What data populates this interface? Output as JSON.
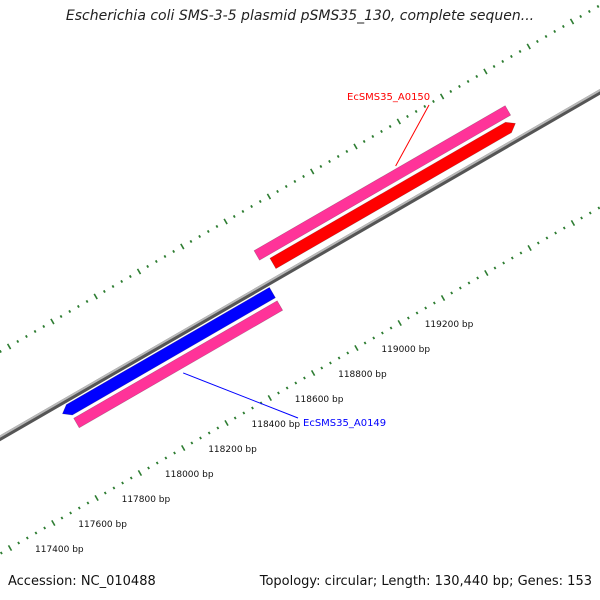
{
  "title": "Escherichia coli SMS-3-5 plasmid pSMS35_130, complete sequen...",
  "footer": {
    "accession": "Accession: NC_010488",
    "summary": "Topology: circular; Length: 130,440 bp; Genes: 153"
  },
  "colors": {
    "backbone": "#808080",
    "tick": "#2e7d32",
    "forward_cds": "#ff0000",
    "reverse_cds": "#0000ff",
    "gene": "#ff3399"
  },
  "chart_data": {
    "type": "linear-genome-map",
    "tick_labels": [
      {
        "bp": 117400,
        "label": "117400 bp"
      },
      {
        "bp": 117600,
        "label": "117600 bp"
      },
      {
        "bp": 117800,
        "label": "117800 bp"
      },
      {
        "bp": 118000,
        "label": "118000 bp"
      },
      {
        "bp": 118200,
        "label": "118200 bp"
      },
      {
        "bp": 118400,
        "label": "118400 bp"
      },
      {
        "bp": 118600,
        "label": "118600 bp"
      },
      {
        "bp": 118800,
        "label": "118800 bp"
      },
      {
        "bp": 119000,
        "label": "119000 bp"
      },
      {
        "bp": 119200,
        "label": "119200 bp"
      }
    ],
    "features": [
      {
        "name": "EcSMS35_A0149",
        "strand": "reverse",
        "start": 117850,
        "end": 118820,
        "label_color": "#0000ff"
      },
      {
        "name": "EcSMS35_A0150",
        "strand": "forward",
        "start": 118880,
        "end": 120000,
        "label_color": "#ff0000"
      }
    ]
  }
}
